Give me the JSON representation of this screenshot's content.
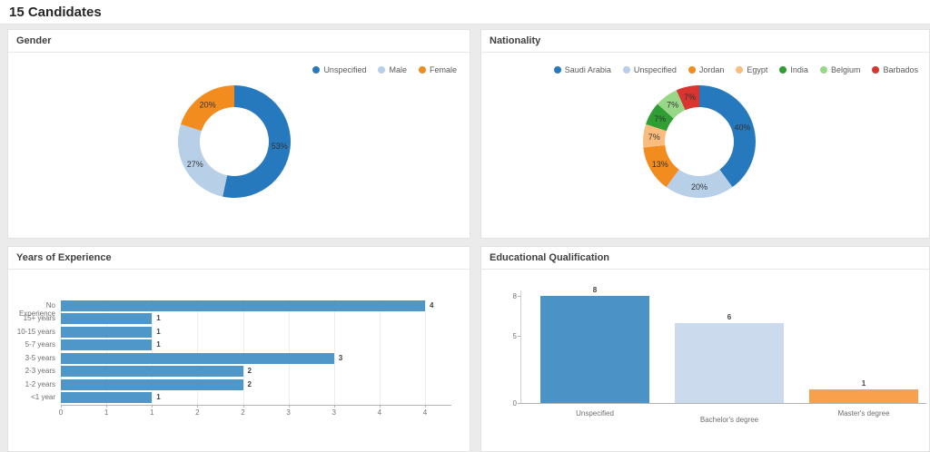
{
  "header": {
    "title": "15 Candidates"
  },
  "panels": {
    "gender": {
      "title": "Gender"
    },
    "nationality": {
      "title": "Nationality"
    },
    "experience": {
      "title": "Years of Experience"
    },
    "education": {
      "title": "Educational Qualification"
    }
  },
  "chart_data": [
    {
      "id": "gender",
      "type": "pie",
      "title": "Gender",
      "donut": true,
      "legend_position": "top-right",
      "slices": [
        {
          "label": "Unspecified",
          "count": 8,
          "pct_label": "53%",
          "color": "#2779bd"
        },
        {
          "label": "Male",
          "count": 4,
          "pct_label": "27%",
          "color": "#b8cfe8"
        },
        {
          "label": "Female",
          "count": 3,
          "pct_label": "20%",
          "color": "#f28c1e"
        }
      ]
    },
    {
      "id": "nationality",
      "type": "pie",
      "title": "Nationality",
      "donut": true,
      "legend_position": "top-right",
      "slices": [
        {
          "label": "Saudi Arabia",
          "count": 6,
          "pct_label": "40%",
          "color": "#2779bd"
        },
        {
          "label": "Unspecified",
          "count": 3,
          "pct_label": "20%",
          "color": "#b8cfe8"
        },
        {
          "label": "Jordan",
          "count": 2,
          "pct_label": "13%",
          "color": "#f28c1e"
        },
        {
          "label": "Egypt",
          "count": 1,
          "pct_label": "7%",
          "color": "#fbbd7e"
        },
        {
          "label": "India",
          "count": 1,
          "pct_label": "7%",
          "color": "#2f9e33"
        },
        {
          "label": "Belgium",
          "count": 1,
          "pct_label": "7%",
          "color": "#98d788"
        },
        {
          "label": "Barbados",
          "count": 1,
          "pct_label": "7%",
          "color": "#d9342f"
        }
      ]
    },
    {
      "id": "experience",
      "type": "bar",
      "orientation": "horizontal",
      "title": "Years of Experience",
      "categories": [
        "No Experience",
        "15+ years",
        "10-15 years",
        "5-7 years",
        "3-5 years",
        "2-3 years",
        "1-2 years",
        "<1 year"
      ],
      "values": [
        4,
        1,
        1,
        1,
        3,
        2,
        2,
        1
      ],
      "bar_color": "#4f97c9",
      "xlim": [
        0,
        4.2
      ],
      "ticks": [
        0,
        0.5,
        1,
        1.5,
        2,
        2.5,
        3,
        3.5,
        4
      ],
      "tick_labels": [
        "0",
        "1",
        "1",
        "2",
        "2",
        "3",
        "3",
        "4",
        "4"
      ],
      "grid": true
    },
    {
      "id": "education",
      "type": "bar",
      "orientation": "vertical",
      "title": "Educational Qualification",
      "categories": [
        "Unspecified",
        "Bachelor's degree",
        "Master's degree"
      ],
      "values": [
        8,
        6,
        1
      ],
      "bar_colors": [
        "#4b93c6",
        "#ccdaee",
        "#f9a04c"
      ],
      "ylim": [
        0,
        8.4
      ],
      "ticks": [
        0,
        5,
        8
      ],
      "tick_labels": [
        "0",
        "5",
        "8"
      ],
      "grid": false
    }
  ]
}
